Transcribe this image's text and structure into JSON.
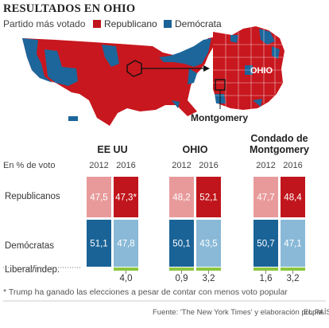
{
  "header": {
    "title": "RESULTADOS EN OHIO",
    "subtitle": "Partido más votado",
    "legend": [
      {
        "label": "Republicano",
        "color": "#c0151c"
      },
      {
        "label": "Demócrata",
        "color": "#1a6397"
      }
    ]
  },
  "map": {
    "ohio_label": "OHIO",
    "county_label": "Montgomery"
  },
  "colors": {
    "rep_2012": "#e89a9b",
    "rep_2016": "#c0151c",
    "dem_2012": "#1a6397",
    "dem_2016": "#89b9d7",
    "lib": "#8cc63f",
    "map_rep": "#c8171e",
    "map_dem": "#1c669b"
  },
  "axis_label": "En % de voto",
  "row_labels": {
    "rep": "Republicanos",
    "dem": "Demócratas",
    "lib": "Liberal/indep."
  },
  "chart_data": {
    "type": "bar",
    "stacked": true,
    "unit": "%",
    "groups": [
      {
        "title": "EE UU",
        "years": [
          "2012",
          "2016"
        ],
        "series": [
          {
            "name": "Republicanos",
            "values": [
              47.5,
              47.3
            ],
            "labels": [
              "47,5",
              "47,3*"
            ]
          },
          {
            "name": "Demócratas",
            "values": [
              51.1,
              47.8
            ],
            "labels": [
              "51,1",
              "47,8"
            ]
          },
          {
            "name": "Liberal/indep.",
            "values": [
              null,
              4.0
            ],
            "labels": [
              "",
              "4,0"
            ]
          }
        ]
      },
      {
        "title": "OHIO",
        "years": [
          "2012",
          "2016"
        ],
        "series": [
          {
            "name": "Republicanos",
            "values": [
              48.2,
              52.1
            ],
            "labels": [
              "48,2",
              "52,1"
            ]
          },
          {
            "name": "Demócratas",
            "values": [
              50.1,
              43.5
            ],
            "labels": [
              "50,1",
              "43,5"
            ]
          },
          {
            "name": "Liberal/indep.",
            "values": [
              0.9,
              3.2
            ],
            "labels": [
              "0,9",
              "3,2"
            ]
          }
        ]
      },
      {
        "title": "Condado de Montgomery",
        "title_lines": [
          "Condado de",
          "Montgomery"
        ],
        "years": [
          "2012",
          "2016"
        ],
        "series": [
          {
            "name": "Republicanos",
            "values": [
              47.7,
              48.4
            ],
            "labels": [
              "47,7",
              "48,4"
            ]
          },
          {
            "name": "Demócratas",
            "values": [
              50.7,
              47.1
            ],
            "labels": [
              "50,7",
              "47,1"
            ]
          },
          {
            "name": "Liberal/indep.",
            "values": [
              1.6,
              3.2
            ],
            "labels": [
              "1,6",
              "3,2"
            ]
          }
        ]
      }
    ]
  },
  "footnote": "* Trump ha ganado las elecciones a pesar de contar con menos voto popular",
  "source": "Fuente: 'The New York Times' y elaboración propia.",
  "brand": "EL PAÍS"
}
